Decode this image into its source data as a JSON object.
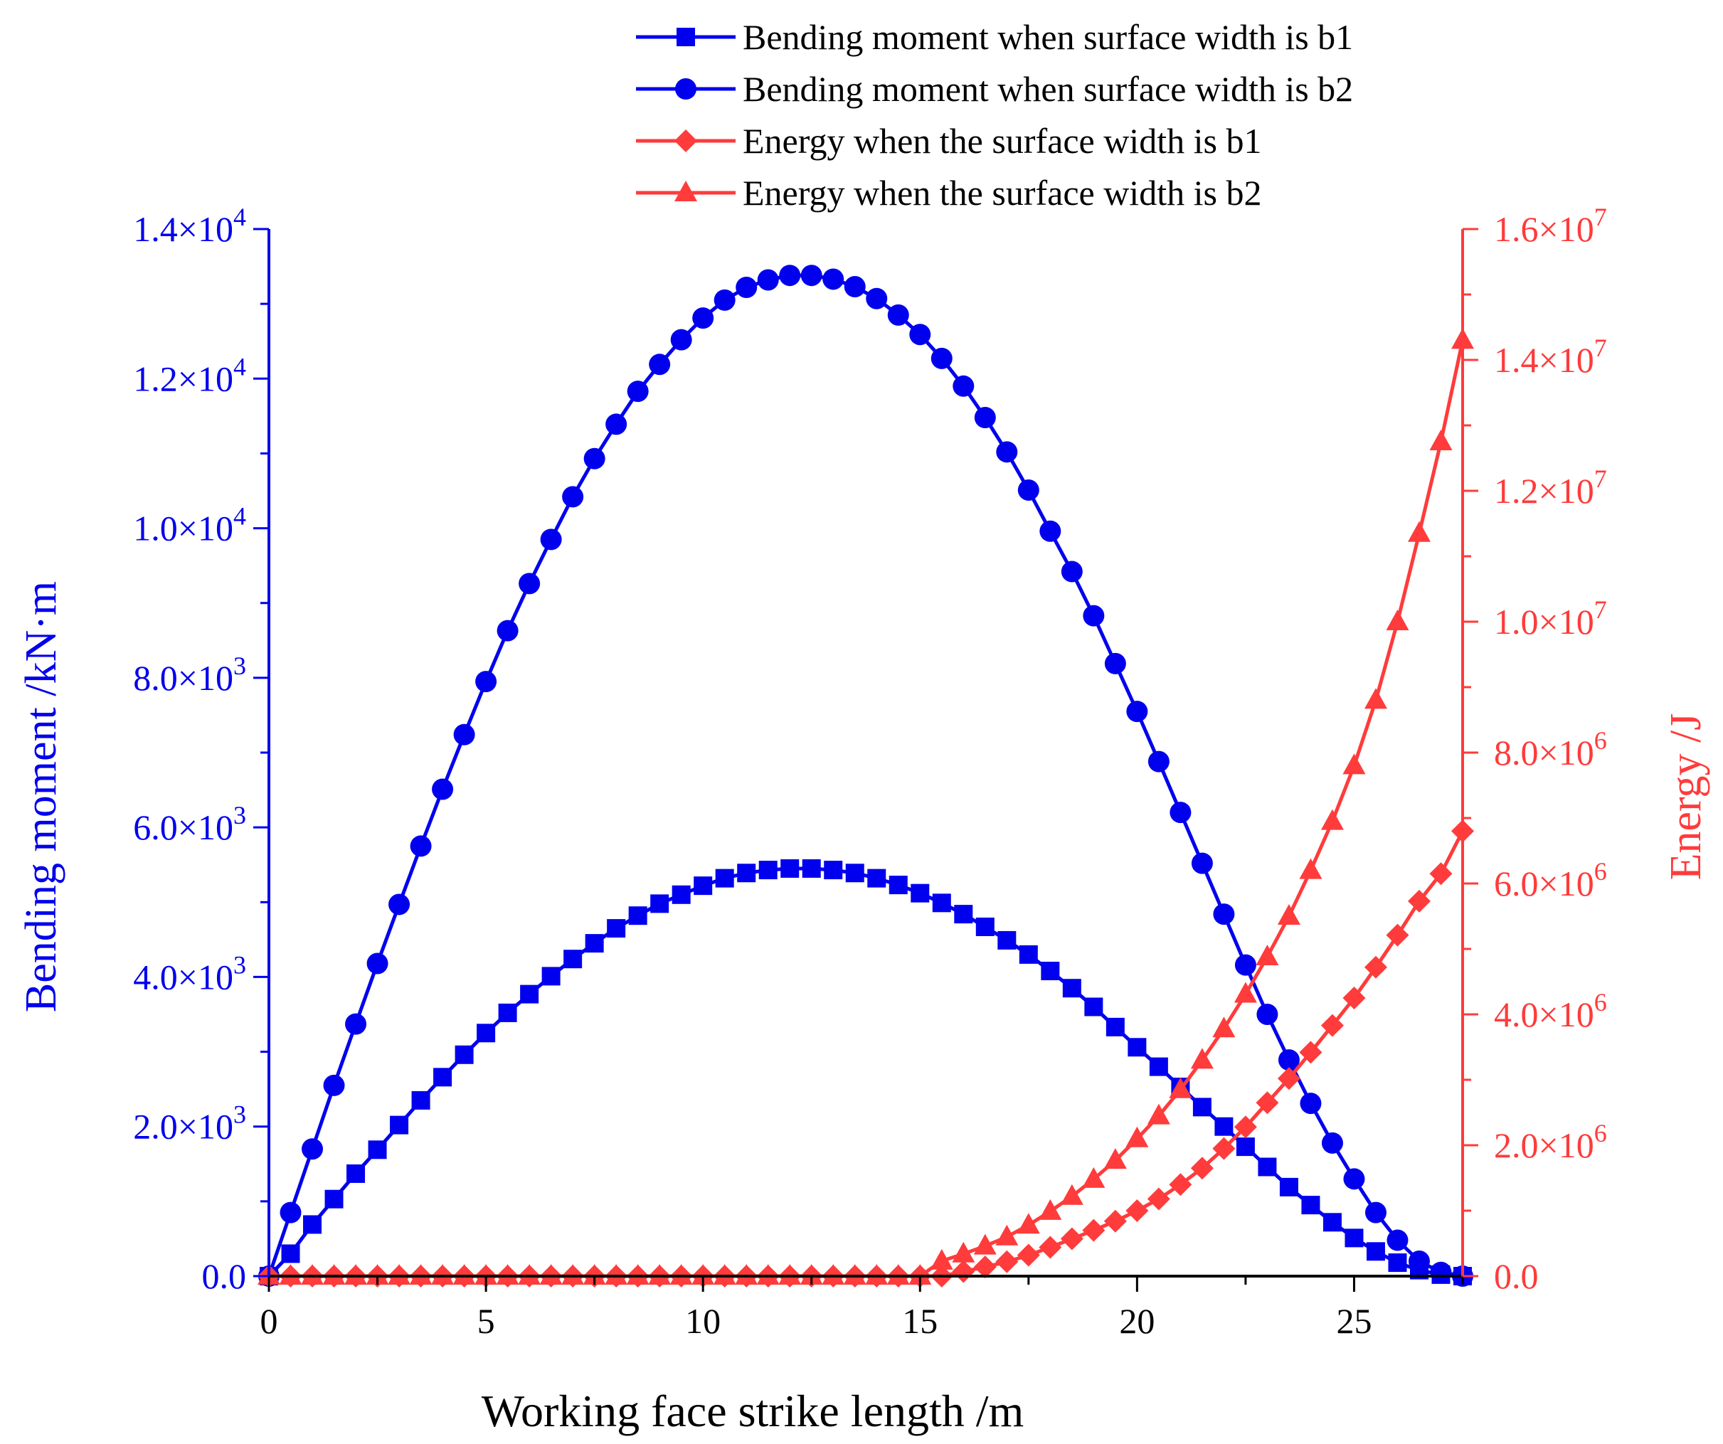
{
  "chart_data": {
    "type": "line",
    "title": "",
    "xlabel": "Working face strike length /m",
    "ylabel_left": "Bending moment /kN·m",
    "ylabel_right": "Energy /J",
    "xlim": [
      0,
      27.5
    ],
    "ylim_left": [
      0,
      14000
    ],
    "ylim_right": [
      0,
      16000000
    ],
    "x_ticks": [
      "0",
      "5",
      "10",
      "15",
      "20",
      "25"
    ],
    "y_left_ticks": [
      {
        "mantissa": "0.0",
        "exp": ""
      },
      {
        "mantissa": "2.0×10",
        "exp": "3"
      },
      {
        "mantissa": "4.0×10",
        "exp": "3"
      },
      {
        "mantissa": "6.0×10",
        "exp": "3"
      },
      {
        "mantissa": "8.0×10",
        "exp": "3"
      },
      {
        "mantissa": "1.0×10",
        "exp": "4"
      },
      {
        "mantissa": "1.2×10",
        "exp": "4"
      },
      {
        "mantissa": "1.4×10",
        "exp": "4"
      }
    ],
    "y_right_ticks": [
      {
        "mantissa": "0.0",
        "exp": ""
      },
      {
        "mantissa": "2.0×10",
        "exp": "6"
      },
      {
        "mantissa": "4.0×10",
        "exp": "6"
      },
      {
        "mantissa": "6.0×10",
        "exp": "6"
      },
      {
        "mantissa": "8.0×10",
        "exp": "6"
      },
      {
        "mantissa": "1.0×10",
        "exp": "7"
      },
      {
        "mantissa": "1.2×10",
        "exp": "7"
      },
      {
        "mantissa": "1.4×10",
        "exp": "7"
      },
      {
        "mantissa": "1.6×10",
        "exp": "7"
      }
    ],
    "colors": {
      "left_axis": "#0000ee",
      "right_axis": "#ff3b3b",
      "axis": "#000000"
    },
    "legend_position": "top",
    "series": [
      {
        "name": "Bending moment when surface width is b1",
        "axis": "left",
        "marker": "square",
        "color": "#0000ee",
        "x": [
          0,
          0.5,
          1,
          1.5,
          2,
          2.5,
          3,
          3.5,
          4,
          4.5,
          5,
          5.5,
          6,
          6.5,
          7,
          7.5,
          8,
          8.5,
          9,
          9.5,
          10,
          10.5,
          11,
          11.5,
          12,
          12.5,
          13,
          13.5,
          14,
          14.5,
          15,
          15.5,
          16,
          16.5,
          17,
          17.5,
          18,
          18.5,
          19,
          19.5,
          20,
          20.5,
          21,
          21.5,
          22,
          22.5,
          23,
          23.5,
          24,
          24.5,
          25,
          25.5,
          26,
          26.5,
          27,
          27.5
        ],
        "values": [
          0,
          300,
          690,
          1030,
          1370,
          1690,
          2020,
          2350,
          2660,
          2960,
          3250,
          3520,
          3770,
          4010,
          4240,
          4450,
          4650,
          4820,
          4980,
          5100,
          5220,
          5320,
          5390,
          5430,
          5450,
          5450,
          5430,
          5390,
          5320,
          5230,
          5120,
          4990,
          4840,
          4670,
          4490,
          4300,
          4080,
          3850,
          3600,
          3330,
          3060,
          2800,
          2530,
          2260,
          2000,
          1730,
          1460,
          1190,
          950,
          720,
          510,
          330,
          180,
          80,
          20,
          0
        ]
      },
      {
        "name": "Bending moment when surface width is b2",
        "axis": "left",
        "marker": "circle",
        "color": "#0000ee",
        "x": [
          0,
          0.5,
          1,
          1.5,
          2,
          2.5,
          3,
          3.5,
          4,
          4.5,
          5,
          5.5,
          6,
          6.5,
          7,
          7.5,
          8,
          8.5,
          9,
          9.5,
          10,
          10.5,
          11,
          11.5,
          12,
          12.5,
          13,
          13.5,
          14,
          14.5,
          15,
          15.5,
          16,
          16.5,
          17,
          17.5,
          18,
          18.5,
          19,
          19.5,
          20,
          20.5,
          21,
          21.5,
          22,
          22.5,
          23,
          23.5,
          24,
          24.5,
          25,
          25.5,
          26,
          26.5,
          27,
          27.5
        ],
        "values": [
          0,
          850,
          1700,
          2550,
          3370,
          4180,
          4970,
          5750,
          6510,
          7240,
          7950,
          8630,
          9260,
          9850,
          10420,
          10930,
          11390,
          11830,
          12190,
          12520,
          12810,
          13050,
          13220,
          13320,
          13380,
          13380,
          13330,
          13230,
          13070,
          12850,
          12590,
          12270,
          11900,
          11480,
          11020,
          10510,
          9960,
          9420,
          8830,
          8190,
          7550,
          6880,
          6200,
          5520,
          4840,
          4160,
          3500,
          2890,
          2310,
          1780,
          1300,
          850,
          480,
          200,
          50,
          0
        ]
      },
      {
        "name": "Energy when the surface width is b1",
        "axis": "right",
        "marker": "diamond",
        "color": "#ff3b3b",
        "x": [
          0,
          0.5,
          1,
          1.5,
          2,
          2.5,
          3,
          3.5,
          4,
          4.5,
          5,
          5.5,
          6,
          6.5,
          7,
          7.5,
          8,
          8.5,
          9,
          9.5,
          10,
          10.5,
          11,
          11.5,
          12,
          12.5,
          13,
          13.5,
          14,
          14.5,
          15,
          15.5,
          16,
          16.5,
          17,
          17.5,
          18,
          18.5,
          19,
          19.5,
          20,
          20.5,
          21,
          21.5,
          22,
          22.5,
          23,
          23.5,
          24,
          24.5,
          25,
          25.5,
          26,
          26.5,
          27,
          27.5
        ],
        "values": [
          0,
          0,
          0,
          0,
          0,
          0,
          0,
          0,
          0,
          0,
          0,
          0,
          0,
          0,
          0,
          0,
          0,
          0,
          0,
          0,
          0,
          0,
          0,
          0,
          0,
          0,
          0,
          0,
          0,
          0,
          0,
          0,
          70000,
          140000,
          220000,
          320000,
          440000,
          570000,
          700000,
          840000,
          1000000,
          1180000,
          1400000,
          1650000,
          1950000,
          2280000,
          2650000,
          3020000,
          3420000,
          3830000,
          4250000,
          4720000,
          5210000,
          5730000,
          6150000,
          6800000
        ]
      },
      {
        "name": "Energy when the surface width is b2",
        "axis": "right",
        "marker": "triangle",
        "color": "#ff3b3b",
        "x": [
          0,
          0.5,
          1,
          1.5,
          2,
          2.5,
          3,
          3.5,
          4,
          4.5,
          5,
          5.5,
          6,
          6.5,
          7,
          7.5,
          8,
          8.5,
          9,
          9.5,
          10,
          10.5,
          11,
          11.5,
          12,
          12.5,
          13,
          13.5,
          14,
          14.5,
          15,
          15.5,
          16,
          16.5,
          17,
          17.5,
          18,
          18.5,
          19,
          19.5,
          20,
          20.5,
          21,
          21.5,
          22,
          22.5,
          23,
          23.5,
          24,
          24.5,
          25,
          25.5,
          26,
          26.5,
          27,
          27.5
        ],
        "values": [
          0,
          0,
          0,
          0,
          0,
          0,
          0,
          0,
          0,
          0,
          0,
          0,
          0,
          0,
          0,
          0,
          0,
          0,
          0,
          0,
          0,
          0,
          0,
          0,
          0,
          0,
          0,
          0,
          0,
          0,
          0,
          230000,
          340000,
          460000,
          600000,
          780000,
          990000,
          1220000,
          1480000,
          1770000,
          2100000,
          2450000,
          2850000,
          3300000,
          3780000,
          4310000,
          4880000,
          5500000,
          6200000,
          6950000,
          7800000,
          8800000,
          10000000,
          11350000,
          12750000,
          14300000
        ]
      }
    ]
  }
}
